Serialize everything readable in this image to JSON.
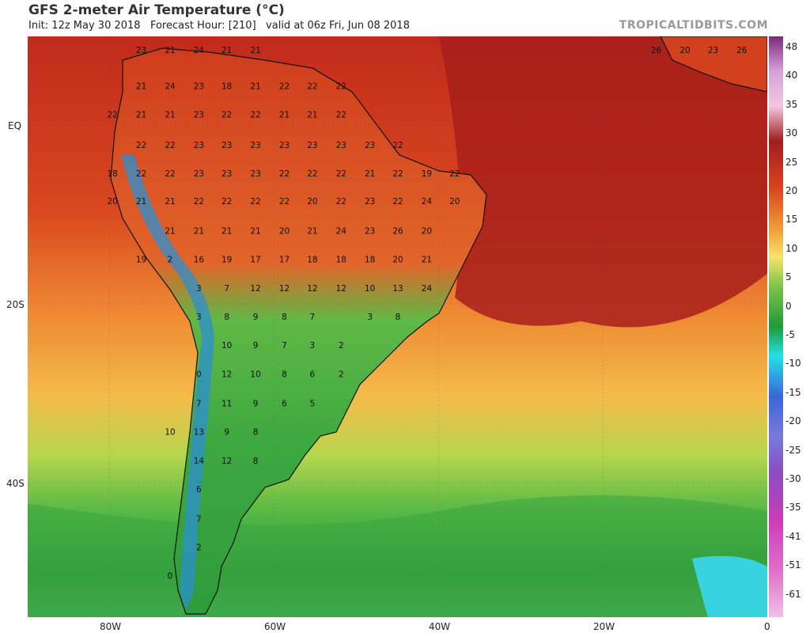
{
  "header": {
    "title": "GFS 2-meter Air Temperature (°C)",
    "subtitle": "Init: 12z May 30 2018   Forecast Hour: [210]   valid at 06z Fri, Jun 08 2018",
    "source": "TROPICALTIDBITS.COM"
  },
  "axes": {
    "lat_ticks": [
      "EQ",
      "20S",
      "40S"
    ],
    "lon_ticks": [
      "80W",
      "60W",
      "40W",
      "20W",
      "0"
    ]
  },
  "colorbar": {
    "labels": [
      "48",
      "40",
      "35",
      "30",
      "25",
      "20",
      "15",
      "10",
      "5",
      "0",
      "-5",
      "-10",
      "-15",
      "-20",
      "-25",
      "-30",
      "-35",
      "-41",
      "-51",
      "-61"
    ]
  },
  "colors": {
    "hot": "#b3231a",
    "warm": "#e2602a",
    "mild": "#f2ad41",
    "cool": "#7ec44a",
    "cold": "#2f9e3b",
    "freezing": "#35d1e0"
  },
  "temperature_labels": [
    {
      "lon": -76.1,
      "lat": 8.3,
      "v": "23"
    },
    {
      "lon": -72.6,
      "lat": 8.3,
      "v": "21"
    },
    {
      "lon": -69.1,
      "lat": 8.3,
      "v": "24"
    },
    {
      "lon": -65.7,
      "lat": 8.3,
      "v": "21"
    },
    {
      "lon": -62.2,
      "lat": 8.3,
      "v": "21"
    },
    {
      "lon": -76.1,
      "lat": 4.3,
      "v": "21"
    },
    {
      "lon": -72.6,
      "lat": 4.3,
      "v": "24"
    },
    {
      "lon": -69.1,
      "lat": 4.3,
      "v": "23"
    },
    {
      "lon": -65.7,
      "lat": 4.3,
      "v": "18"
    },
    {
      "lon": -62.2,
      "lat": 4.3,
      "v": "21"
    },
    {
      "lon": -58.7,
      "lat": 4.3,
      "v": "22"
    },
    {
      "lon": -55.3,
      "lat": 4.3,
      "v": "22"
    },
    {
      "lon": -51.8,
      "lat": 4.3,
      "v": "22"
    },
    {
      "lon": -79.6,
      "lat": 1.1,
      "v": "22"
    },
    {
      "lon": -76.1,
      "lat": 1.1,
      "v": "21"
    },
    {
      "lon": -72.6,
      "lat": 1.1,
      "v": "21"
    },
    {
      "lon": -69.1,
      "lat": 1.1,
      "v": "23"
    },
    {
      "lon": -65.7,
      "lat": 1.1,
      "v": "22"
    },
    {
      "lon": -62.2,
      "lat": 1.1,
      "v": "22"
    },
    {
      "lon": -58.7,
      "lat": 1.1,
      "v": "21"
    },
    {
      "lon": -55.3,
      "lat": 1.1,
      "v": "21"
    },
    {
      "lon": -51.8,
      "lat": 1.1,
      "v": "22"
    },
    {
      "lon": -76.1,
      "lat": -2.3,
      "v": "22"
    },
    {
      "lon": -72.6,
      "lat": -2.3,
      "v": "22"
    },
    {
      "lon": -69.1,
      "lat": -2.3,
      "v": "23"
    },
    {
      "lon": -65.7,
      "lat": -2.3,
      "v": "23"
    },
    {
      "lon": -62.2,
      "lat": -2.3,
      "v": "23"
    },
    {
      "lon": -58.7,
      "lat": -2.3,
      "v": "23"
    },
    {
      "lon": -55.3,
      "lat": -2.3,
      "v": "23"
    },
    {
      "lon": -51.8,
      "lat": -2.3,
      "v": "23"
    },
    {
      "lon": -48.3,
      "lat": -2.3,
      "v": "23"
    },
    {
      "lon": -44.9,
      "lat": -2.3,
      "v": "22"
    },
    {
      "lon": -79.6,
      "lat": -5.5,
      "v": "18"
    },
    {
      "lon": -76.1,
      "lat": -5.5,
      "v": "22"
    },
    {
      "lon": -72.6,
      "lat": -5.5,
      "v": "22"
    },
    {
      "lon": -69.1,
      "lat": -5.5,
      "v": "23"
    },
    {
      "lon": -65.7,
      "lat": -5.5,
      "v": "23"
    },
    {
      "lon": -62.2,
      "lat": -5.5,
      "v": "23"
    },
    {
      "lon": -58.7,
      "lat": -5.5,
      "v": "22"
    },
    {
      "lon": -55.3,
      "lat": -5.5,
      "v": "22"
    },
    {
      "lon": -51.8,
      "lat": -5.5,
      "v": "22"
    },
    {
      "lon": -48.3,
      "lat": -5.5,
      "v": "21"
    },
    {
      "lon": -44.9,
      "lat": -5.5,
      "v": "22"
    },
    {
      "lon": -41.4,
      "lat": -5.5,
      "v": "19"
    },
    {
      "lon": -38.0,
      "lat": -5.5,
      "v": "22"
    },
    {
      "lon": -79.6,
      "lat": -8.6,
      "v": "20"
    },
    {
      "lon": -76.1,
      "lat": -8.6,
      "v": "21"
    },
    {
      "lon": -72.6,
      "lat": -8.6,
      "v": "21"
    },
    {
      "lon": -69.1,
      "lat": -8.6,
      "v": "22"
    },
    {
      "lon": -65.7,
      "lat": -8.6,
      "v": "22"
    },
    {
      "lon": -62.2,
      "lat": -8.6,
      "v": "22"
    },
    {
      "lon": -58.7,
      "lat": -8.6,
      "v": "22"
    },
    {
      "lon": -55.3,
      "lat": -8.6,
      "v": "20"
    },
    {
      "lon": -51.8,
      "lat": -8.6,
      "v": "22"
    },
    {
      "lon": -48.3,
      "lat": -8.6,
      "v": "23"
    },
    {
      "lon": -44.9,
      "lat": -8.6,
      "v": "22"
    },
    {
      "lon": -41.4,
      "lat": -8.6,
      "v": "24"
    },
    {
      "lon": -38.0,
      "lat": -8.6,
      "v": "20"
    },
    {
      "lon": -72.6,
      "lat": -11.9,
      "v": "21"
    },
    {
      "lon": -69.1,
      "lat": -11.9,
      "v": "21"
    },
    {
      "lon": -65.7,
      "lat": -11.9,
      "v": "21"
    },
    {
      "lon": -62.2,
      "lat": -11.9,
      "v": "21"
    },
    {
      "lon": -58.7,
      "lat": -11.9,
      "v": "20"
    },
    {
      "lon": -55.3,
      "lat": -11.9,
      "v": "21"
    },
    {
      "lon": -51.8,
      "lat": -11.9,
      "v": "24"
    },
    {
      "lon": -48.3,
      "lat": -11.9,
      "v": "23"
    },
    {
      "lon": -44.9,
      "lat": -11.9,
      "v": "26"
    },
    {
      "lon": -41.4,
      "lat": -11.9,
      "v": "20"
    },
    {
      "lon": -76.1,
      "lat": -15.1,
      "v": "19"
    },
    {
      "lon": -72.6,
      "lat": -15.1,
      "v": "2"
    },
    {
      "lon": -69.1,
      "lat": -15.1,
      "v": "16"
    },
    {
      "lon": -65.7,
      "lat": -15.1,
      "v": "19"
    },
    {
      "lon": -62.2,
      "lat": -15.1,
      "v": "17"
    },
    {
      "lon": -58.7,
      "lat": -15.1,
      "v": "17"
    },
    {
      "lon": -55.3,
      "lat": -15.1,
      "v": "18"
    },
    {
      "lon": -51.8,
      "lat": -15.1,
      "v": "18"
    },
    {
      "lon": -48.3,
      "lat": -15.1,
      "v": "18"
    },
    {
      "lon": -44.9,
      "lat": -15.1,
      "v": "20"
    },
    {
      "lon": -41.4,
      "lat": -15.1,
      "v": "21"
    },
    {
      "lon": -69.1,
      "lat": -18.3,
      "v": "3"
    },
    {
      "lon": -65.7,
      "lat": -18.3,
      "v": "7"
    },
    {
      "lon": -62.2,
      "lat": -18.3,
      "v": "12"
    },
    {
      "lon": -58.7,
      "lat": -18.3,
      "v": "12"
    },
    {
      "lon": -55.3,
      "lat": -18.3,
      "v": "12"
    },
    {
      "lon": -51.8,
      "lat": -18.3,
      "v": "12"
    },
    {
      "lon": -48.3,
      "lat": -18.3,
      "v": "10"
    },
    {
      "lon": -44.9,
      "lat": -18.3,
      "v": "13"
    },
    {
      "lon": -41.4,
      "lat": -18.3,
      "v": "24"
    },
    {
      "lon": -69.1,
      "lat": -21.5,
      "v": "3"
    },
    {
      "lon": -65.7,
      "lat": -21.5,
      "v": "8"
    },
    {
      "lon": -62.2,
      "lat": -21.5,
      "v": "9"
    },
    {
      "lon": -58.7,
      "lat": -21.5,
      "v": "8"
    },
    {
      "lon": -55.3,
      "lat": -21.5,
      "v": "7"
    },
    {
      "lon": -48.3,
      "lat": -21.5,
      "v": "3"
    },
    {
      "lon": -44.9,
      "lat": -21.5,
      "v": "8"
    },
    {
      "lon": -65.7,
      "lat": -24.7,
      "v": "10"
    },
    {
      "lon": -62.2,
      "lat": -24.7,
      "v": "9"
    },
    {
      "lon": -58.7,
      "lat": -24.7,
      "v": "7"
    },
    {
      "lon": -55.3,
      "lat": -24.7,
      "v": "3"
    },
    {
      "lon": -51.8,
      "lat": -24.7,
      "v": "2"
    },
    {
      "lon": -69.1,
      "lat": -27.9,
      "v": "0"
    },
    {
      "lon": -65.7,
      "lat": -27.9,
      "v": "12"
    },
    {
      "lon": -62.2,
      "lat": -27.9,
      "v": "10"
    },
    {
      "lon": -58.7,
      "lat": -27.9,
      "v": "8"
    },
    {
      "lon": -55.3,
      "lat": -27.9,
      "v": "6"
    },
    {
      "lon": -51.8,
      "lat": -27.9,
      "v": "2"
    },
    {
      "lon": -69.1,
      "lat": -31.2,
      "v": "7"
    },
    {
      "lon": -65.7,
      "lat": -31.2,
      "v": "11"
    },
    {
      "lon": -62.2,
      "lat": -31.2,
      "v": "9"
    },
    {
      "lon": -58.7,
      "lat": -31.2,
      "v": "6"
    },
    {
      "lon": -55.3,
      "lat": -31.2,
      "v": "5"
    },
    {
      "lon": -72.6,
      "lat": -34.4,
      "v": "10"
    },
    {
      "lon": -69.1,
      "lat": -34.4,
      "v": "13"
    },
    {
      "lon": -65.7,
      "lat": -34.4,
      "v": "9"
    },
    {
      "lon": -62.2,
      "lat": -34.4,
      "v": "8"
    },
    {
      "lon": -69.1,
      "lat": -37.6,
      "v": "14"
    },
    {
      "lon": -65.7,
      "lat": -37.6,
      "v": "12"
    },
    {
      "lon": -62.2,
      "lat": -37.6,
      "v": "8"
    },
    {
      "lon": -69.1,
      "lat": -40.8,
      "v": "6"
    },
    {
      "lon": -69.1,
      "lat": -44.1,
      "v": "7"
    },
    {
      "lon": -69.1,
      "lat": -47.3,
      "v": "2"
    },
    {
      "lon": -72.6,
      "lat": -50.5,
      "v": "0"
    },
    {
      "lon": -13.5,
      "lat": 8.3,
      "v": "26"
    },
    {
      "lon": -10.0,
      "lat": 8.3,
      "v": "20"
    },
    {
      "lon": -6.6,
      "lat": 8.3,
      "v": "23"
    },
    {
      "lon": -3.1,
      "lat": 8.3,
      "v": "26"
    }
  ]
}
